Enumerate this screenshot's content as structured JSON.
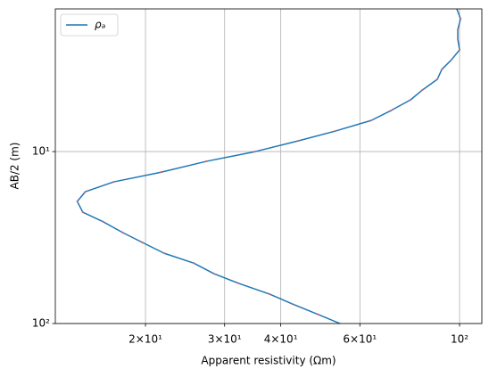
{
  "chart_data": {
    "type": "line",
    "xlabel": "Apparent resistivity (Ωm)",
    "ylabel": "AB/2 (m)",
    "xscale": "log",
    "yscale": "log",
    "yinverted": true,
    "xlim": [
      12.6,
      112.1
    ],
    "ylim": [
      1.48,
      100
    ],
    "xticks": [
      {
        "value": 20,
        "label": "2×10¹"
      },
      {
        "value": 30,
        "label": "3×10¹"
      },
      {
        "value": 40,
        "label": "4×10¹"
      },
      {
        "value": 60,
        "label": "6×10¹"
      },
      {
        "value": 100,
        "label": "10²"
      }
    ],
    "yticks": [
      {
        "value": 10,
        "label": "10¹"
      },
      {
        "value": 100,
        "label": "10²"
      }
    ],
    "grid": true,
    "legend": "upper left",
    "series": [
      {
        "name": "ρₐ",
        "color": "#1f77b4",
        "marker_color": "#e8656f",
        "x": [
          98.6,
          100.5,
          99.1,
          99.1,
          100,
          96,
          91.3,
          89.2,
          82.6,
          77.8,
          70.3,
          63.6,
          52.9,
          43.7,
          35.1,
          27.3,
          21.6,
          17.0,
          14.7,
          14.1,
          14.5,
          16.1,
          17.8,
          19.7,
          22.0,
          25.6,
          28.4,
          32.3,
          37.8,
          42.4,
          48.5,
          54.7
        ],
        "values": [
          1.48,
          1.69,
          1.95,
          2.22,
          2.56,
          2.92,
          3.33,
          3.8,
          4.39,
          5.0,
          5.78,
          6.59,
          7.6,
          8.67,
          10,
          11.4,
          13.2,
          15.0,
          17.1,
          19.5,
          22.5,
          25.6,
          29.6,
          33.8,
          39.0,
          44.5,
          51.3,
          58.5,
          67.5,
          76.9,
          88.7,
          101
        ]
      }
    ]
  }
}
